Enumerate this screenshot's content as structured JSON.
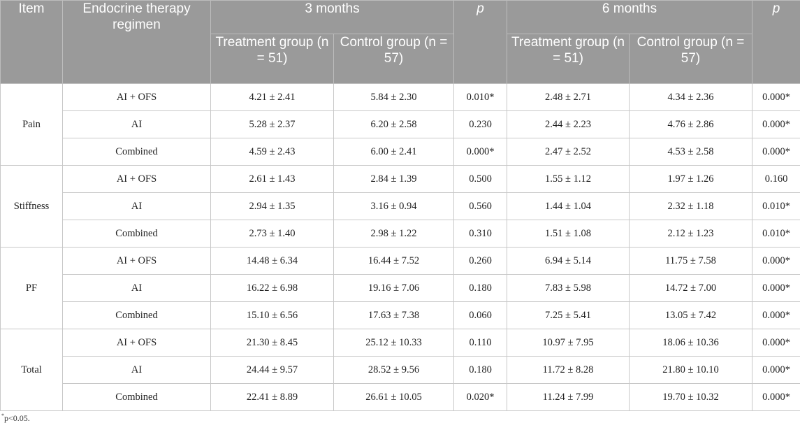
{
  "headers": {
    "item": "Item",
    "regimen": "Endocrine therapy regimen",
    "three_months": "3 months",
    "six_months": "6 months",
    "p": "p",
    "treatment": "Treatment group (n = 51)",
    "control": "Control group (n = 57)"
  },
  "groups": [
    {
      "item": "Pain",
      "rows": [
        {
          "regimen": "AI + OFS",
          "t3": "4.21 ± 2.41",
          "c3": "5.84 ± 2.30",
          "p3": "0.010*",
          "t6": "2.48 ± 2.71",
          "c6": "4.34 ± 2.36",
          "p6": "0.000*"
        },
        {
          "regimen": "AI",
          "t3": "5.28 ± 2.37",
          "c3": "6.20 ± 2.58",
          "p3": "0.230",
          "t6": "2.44 ± 2.23",
          "c6": "4.76 ± 2.86",
          "p6": "0.000*"
        },
        {
          "regimen": "Combined",
          "t3": "4.59 ± 2.43",
          "c3": "6.00 ± 2.41",
          "p3": "0.000*",
          "t6": "2.47 ± 2.52",
          "c6": "4.53 ± 2.58",
          "p6": "0.000*"
        }
      ]
    },
    {
      "item": "Stiffness",
      "rows": [
        {
          "regimen": "AI + OFS",
          "t3": "2.61 ± 1.43",
          "c3": "2.84 ± 1.39",
          "p3": "0.500",
          "t6": "1.55 ± 1.12",
          "c6": "1.97 ± 1.26",
          "p6": "0.160"
        },
        {
          "regimen": "AI",
          "t3": "2.94 ± 1.35",
          "c3": "3.16 ± 0.94",
          "p3": "0.560",
          "t6": "1.44 ± 1.04",
          "c6": "2.32 ± 1.18",
          "p6": "0.010*"
        },
        {
          "regimen": "Combined",
          "t3": "2.73 ± 1.40",
          "c3": "2.98 ± 1.22",
          "p3": "0.310",
          "t6": "1.51 ± 1.08",
          "c6": "2.12 ± 1.23",
          "p6": "0.010*"
        }
      ]
    },
    {
      "item": "PF",
      "rows": [
        {
          "regimen": "AI + OFS",
          "t3": "14.48 ± 6.34",
          "c3": "16.44 ± 7.52",
          "p3": "0.260",
          "t6": "6.94 ± 5.14",
          "c6": "11.75 ± 7.58",
          "p6": "0.000*"
        },
        {
          "regimen": "AI",
          "t3": "16.22 ± 6.98",
          "c3": "19.16 ± 7.06",
          "p3": "0.180",
          "t6": "7.83 ± 5.98",
          "c6": "14.72 ± 7.00",
          "p6": "0.000*"
        },
        {
          "regimen": "Combined",
          "t3": "15.10 ± 6.56",
          "c3": "17.63 ± 7.38",
          "p3": "0.060",
          "t6": "7.25 ± 5.41",
          "c6": "13.05 ± 7.42",
          "p6": "0.000*"
        }
      ]
    },
    {
      "item": "Total",
      "rows": [
        {
          "regimen": "AI + OFS",
          "t3": "21.30 ± 8.45",
          "c3": "25.12 ± 10.33",
          "p3": "0.110",
          "t6": "10.97 ± 7.95",
          "c6": "18.06 ± 10.36",
          "p6": "0.000*"
        },
        {
          "regimen": "AI",
          "t3": "24.44 ± 9.57",
          "c3": "28.52 ± 9.56",
          "p3": "0.180",
          "t6": "11.72 ± 8.28",
          "c6": "21.80 ± 10.10",
          "p6": "0.000*"
        },
        {
          "regimen": "Combined",
          "t3": "22.41 ± 8.89",
          "c3": "26.61 ± 10.05",
          "p3": "0.020*",
          "t6": "11.24 ± 7.99",
          "c6": "19.70 ± 10.32",
          "p6": "0.000*"
        }
      ]
    }
  ],
  "footnote": {
    "marker": "*",
    "text": "p<0.05."
  }
}
